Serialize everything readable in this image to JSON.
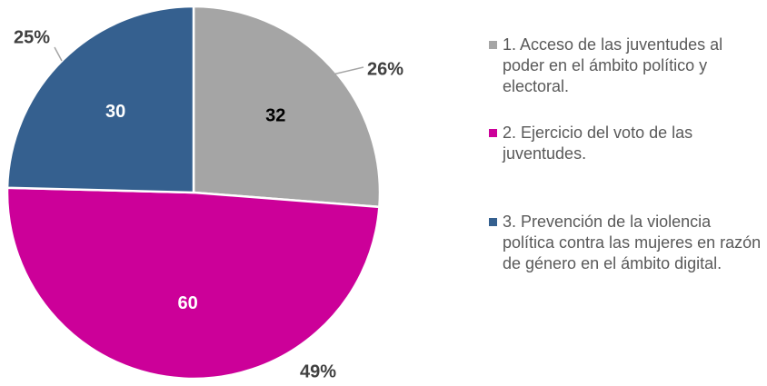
{
  "chart_data": {
    "type": "pie",
    "categories": [
      "1. Acceso de las juventudes al poder en el ámbito político y electoral.",
      "2. Ejercicio del voto de las juventudes.",
      "3. Prevención de la violencia política contra las mujeres en razón de género en el ámbito digital."
    ],
    "values": [
      32,
      60,
      30
    ],
    "percentages": [
      26,
      49,
      25
    ],
    "percentage_labels": [
      "26%",
      "49%",
      "25%"
    ],
    "colors": [
      "#a5a5a5",
      "#cc0099",
      "#35608f"
    ],
    "legend": "right"
  }
}
